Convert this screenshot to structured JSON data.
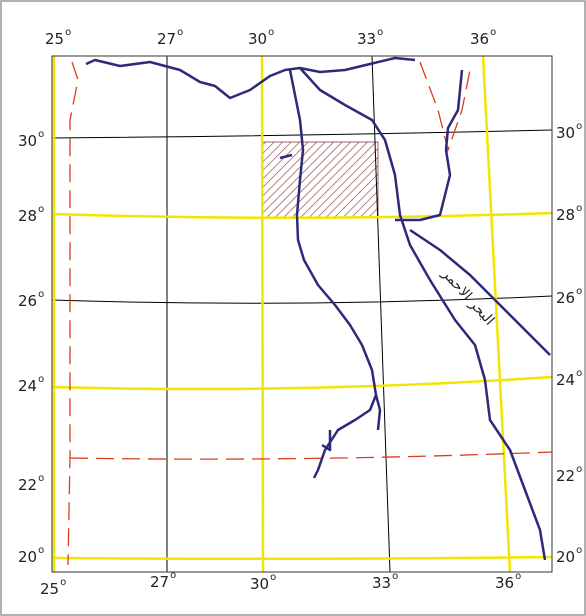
{
  "map": {
    "degree_mark": "o",
    "top_labels": [
      "25",
      "27",
      "30",
      "33",
      "36"
    ],
    "bottom_labels": [
      "25",
      "27",
      "30",
      "33",
      "36"
    ],
    "left_labels": [
      "30",
      "28",
      "26",
      "24",
      "22",
      "20"
    ],
    "right_labels": [
      "30",
      "28",
      "26",
      "24",
      "22",
      "20"
    ],
    "sea_label": "البحر الاحمر"
  }
}
